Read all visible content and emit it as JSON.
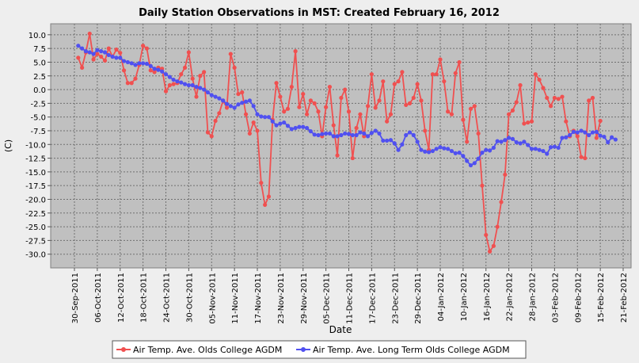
{
  "chart_data": {
    "type": "line",
    "title": "Daily Station Observations in MST: Created February 16, 2012",
    "xlabel": "Date",
    "ylabel": "(C)",
    "ylim": [
      -32.5,
      12.0
    ],
    "yticks": [
      "10.0",
      "7.5",
      "5.0",
      "2.5",
      "0.0",
      "-2.5",
      "-5.0",
      "-7.5",
      "-10.0",
      "-12.5",
      "-15.0",
      "-17.5",
      "-20.0",
      "-22.5",
      "-25.0",
      "-27.5",
      "-30.0"
    ],
    "ytick_values": [
      10,
      7.5,
      5,
      2.5,
      0,
      -2.5,
      -5,
      -7.5,
      -10,
      -12.5,
      -15,
      -17.5,
      -20,
      -22.5,
      -25,
      -27.5,
      -30
    ],
    "xrange_days_from_start": [
      0,
      144
    ],
    "x_start_date": "30-Sep-2011",
    "xtick_step_days": 6,
    "xticks": [
      "30-Sep-2011",
      "06-Oct-2011",
      "12-Oct-2011",
      "18-Oct-2011",
      "24-Oct-2011",
      "30-Oct-2011",
      "05-Nov-2011",
      "11-Nov-2011",
      "17-Nov-2011",
      "23-Nov-2011",
      "29-Nov-2011",
      "05-Dec-2011",
      "11-Dec-2011",
      "17-Dec-2011",
      "23-Dec-2011",
      "29-Dec-2011",
      "04-Jan-2012",
      "10-Jan-2012",
      "16-Jan-2012",
      "22-Jan-2012",
      "28-Jan-2012",
      "03-Feb-2012",
      "09-Feb-2012",
      "15-Feb-2012",
      "21-Feb-2012"
    ],
    "grid": true,
    "legend_position": "bottom",
    "series_first_day": 1,
    "series": [
      {
        "name": "Air Temp. Ave. Olds College AGDM",
        "color": "#f05050",
        "values": [
          5.8,
          4.0,
          6.8,
          10.2,
          5.5,
          6.5,
          6.0,
          5.3,
          7.5,
          6.0,
          7.3,
          6.7,
          3.5,
          1.2,
          1.2,
          2.0,
          4.5,
          8.0,
          7.5,
          3.5,
          3.2,
          4.0,
          3.8,
          -0.3,
          0.8,
          1.0,
          1.2,
          2.8,
          4.0,
          6.8,
          2.0,
          -1.3,
          2.5,
          3.2,
          -7.8,
          -8.5,
          -5.7,
          -4.3,
          -2.0,
          -3.3,
          6.5,
          4.0,
          -0.8,
          -0.5,
          -4.5,
          -8.0,
          -6.0,
          -7.5,
          -17.0,
          -21.0,
          -19.5,
          -5.5,
          1.2,
          -1.3,
          -4.0,
          -3.5,
          0.5,
          7.0,
          -3.2,
          -0.8,
          -4.5,
          -2.0,
          -2.5,
          -4.0,
          -8.5,
          -3.2,
          0.5,
          -6.5,
          -12.0,
          -1.5,
          0.0,
          -4.0,
          -12.5,
          -7.0,
          -4.5,
          -8.5,
          -3.0,
          2.8,
          -3.3,
          -2.0,
          1.5,
          -5.8,
          -4.5,
          1.0,
          1.5,
          3.2,
          -2.8,
          -2.5,
          -1.5,
          1.0,
          -2.0,
          -7.5,
          -11.0,
          2.8,
          2.8,
          5.5,
          1.5,
          -4.0,
          -4.5,
          3.0,
          5.0,
          -5.5,
          -9.5,
          -3.5,
          -3.0,
          -8.0,
          -17.5,
          -26.5,
          -29.5,
          -28.5,
          -25.0,
          -20.5,
          -15.5,
          -4.5,
          -3.8,
          -2.3,
          0.8,
          -6.2,
          -6.0,
          -5.8,
          2.8,
          1.8,
          0.3,
          -1.5,
          -3.0,
          -1.5,
          -1.7,
          -1.3,
          -5.8,
          -8.5,
          -7.5,
          -8.5,
          -12.3,
          -12.5,
          -2.0,
          -1.5,
          -8.8,
          -5.7
        ]
      },
      {
        "name": "Air Temp. Ave. Long Term Olds College AGDM",
        "color": "#5050f0",
        "values": [
          8.0,
          7.5,
          7.0,
          6.8,
          6.5,
          7.2,
          7.0,
          6.8,
          6.3,
          6.0,
          5.8,
          5.8,
          5.2,
          5.0,
          4.8,
          4.5,
          4.8,
          4.8,
          4.7,
          4.3,
          3.8,
          3.6,
          3.3,
          2.8,
          2.3,
          1.8,
          1.5,
          1.3,
          1.0,
          0.8,
          0.8,
          0.5,
          0.3,
          0.0,
          -0.5,
          -1.0,
          -1.3,
          -1.6,
          -2.0,
          -2.6,
          -3.0,
          -3.3,
          -2.7,
          -2.4,
          -2.2,
          -2.0,
          -3.0,
          -4.5,
          -4.9,
          -5.0,
          -5.0,
          -5.8,
          -6.5,
          -6.2,
          -6.0,
          -6.6,
          -7.2,
          -7.0,
          -6.8,
          -6.8,
          -7.0,
          -7.6,
          -8.2,
          -8.3,
          -8.1,
          -8.0,
          -8.0,
          -8.5,
          -8.5,
          -8.3,
          -8.0,
          -8.1,
          -8.3,
          -8.3,
          -7.8,
          -8.0,
          -8.5,
          -7.9,
          -7.5,
          -8.0,
          -9.3,
          -9.3,
          -9.2,
          -9.8,
          -11.0,
          -10.0,
          -8.3,
          -7.8,
          -8.3,
          -9.5,
          -11.0,
          -11.3,
          -11.4,
          -11.2,
          -10.8,
          -10.5,
          -10.7,
          -10.8,
          -11.2,
          -11.6,
          -11.5,
          -12.1,
          -13.0,
          -13.8,
          -13.4,
          -12.6,
          -11.5,
          -11.0,
          -11.1,
          -10.6,
          -9.4,
          -9.5,
          -9.2,
          -8.8,
          -9.0,
          -9.6,
          -9.8,
          -9.5,
          -10.1,
          -10.8,
          -10.8,
          -11.0,
          -11.2,
          -11.7,
          -10.5,
          -10.4,
          -10.6,
          -8.8,
          -8.7,
          -8.3,
          -7.7,
          -7.8,
          -7.5,
          -7.8,
          -8.3,
          -7.8,
          -7.7,
          -8.4,
          -8.6,
          -9.6,
          -8.7,
          -9.1
        ]
      }
    ]
  }
}
